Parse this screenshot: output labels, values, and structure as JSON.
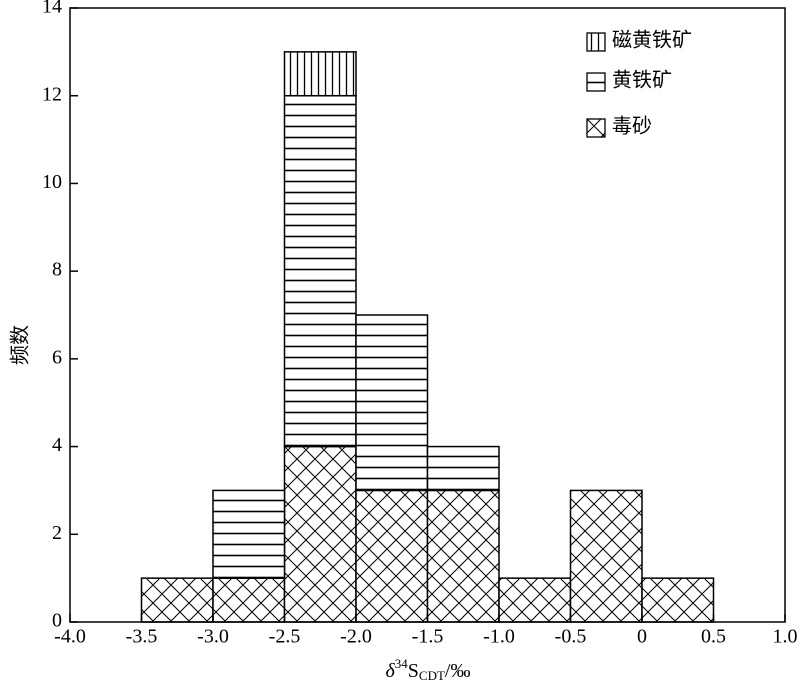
{
  "chart_data": {
    "type": "histogram",
    "xlabel": {
      "symbol": "δ",
      "sup": "34",
      "base": "S",
      "sub": "CDT",
      "unit": "/‰"
    },
    "ylabel": "频数",
    "bins": [
      -3.5,
      -3,
      -2.5,
      -2,
      -1.5,
      -1,
      -0.5,
      0,
      0.5
    ],
    "series": [
      {
        "name": "毒砂",
        "color": "#000000",
        "hatch": "crosshatch",
        "values": [
          1,
          1,
          4,
          3,
          3,
          1,
          3,
          1
        ]
      },
      {
        "name": "黄铁矿",
        "color": "#000000",
        "hatch": "horizontal",
        "values": [
          0,
          2,
          8,
          4,
          1,
          0,
          0,
          0
        ]
      },
      {
        "name": "磁黄铁矿",
        "color": "#000000",
        "hatch": "vertical",
        "values": [
          0,
          0,
          1,
          0,
          0,
          0,
          0,
          0
        ]
      }
    ],
    "stacked": true,
    "xlim": [
      -4,
      1
    ],
    "xticks": [
      {
        "value": -4,
        "label": "-4.0"
      },
      -3.5,
      {
        "value": -3,
        "label": "-3.0"
      },
      -2.5,
      {
        "value": -2,
        "label": "-2.0"
      },
      -1.5,
      {
        "value": -1,
        "label": "-1.0"
      },
      -0.5,
      0,
      0.5,
      {
        "value": 1,
        "label": "1.0"
      }
    ],
    "ylim": [
      0,
      14
    ],
    "yticks": [
      0,
      2,
      4,
      6,
      8,
      10,
      12,
      14
    ],
    "grid": false,
    "legend": "upper right"
  }
}
